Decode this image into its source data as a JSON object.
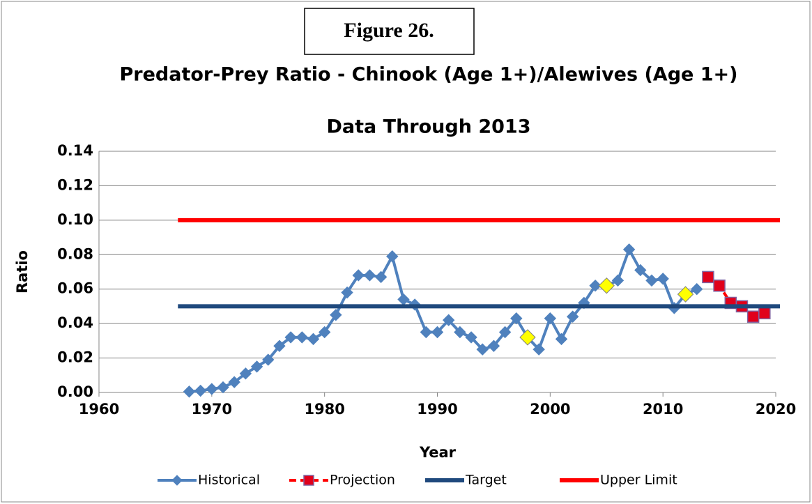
{
  "figure_label": "Figure 26.",
  "chart_data": {
    "type": "line",
    "title": "Predator-Prey Ratio - Chinook (Age 1+)/Alewives (Age 1+)",
    "subtitle": "Data Through 2013",
    "x_label": "Year",
    "y_label": "Ratio",
    "xlim": [
      1960,
      2020
    ],
    "xticks": [
      1960,
      1970,
      1980,
      1990,
      2000,
      2010,
      2020
    ],
    "ylim": [
      0,
      0.14
    ],
    "yticks": [
      {
        "value": 0,
        "label": "0.00"
      },
      {
        "value": 0.02,
        "label": "0.02"
      },
      {
        "value": 0.04,
        "label": "0.04"
      },
      {
        "value": 0.06,
        "label": "0.06"
      },
      {
        "value": 0.08,
        "label": "0.08"
      },
      {
        "value": 0.1,
        "label": "0.10"
      },
      {
        "value": 0.12,
        "label": "0.12"
      },
      {
        "value": 0.14,
        "label": "0.14"
      }
    ],
    "grid": true,
    "legend": "bottom",
    "highlight_x": [
      1998,
      2005,
      2012
    ],
    "highlight_color": "#ffff00",
    "series": [
      {
        "name": "Historical",
        "color": "#4f81bd",
        "marker": "diamond",
        "dash": false,
        "x": [
          1968,
          1969,
          1970,
          1971,
          1972,
          1973,
          1974,
          1975,
          1976,
          1977,
          1978,
          1979,
          1980,
          1981,
          1982,
          1983,
          1984,
          1985,
          1986,
          1987,
          1988,
          1989,
          1990,
          1991,
          1992,
          1993,
          1994,
          1995,
          1996,
          1997,
          1998,
          1999,
          2000,
          2001,
          2002,
          2003,
          2004,
          2005,
          2006,
          2007,
          2008,
          2009,
          2010,
          2011,
          2012,
          2013
        ],
        "values": [
          0.0005,
          0.001,
          0.002,
          0.003,
          0.006,
          0.011,
          0.015,
          0.019,
          0.027,
          0.032,
          0.032,
          0.031,
          0.035,
          0.045,
          0.058,
          0.068,
          0.068,
          0.067,
          0.079,
          0.054,
          0.051,
          0.035,
          0.035,
          0.042,
          0.035,
          0.032,
          0.025,
          0.027,
          0.035,
          0.043,
          0.032,
          0.025,
          0.043,
          0.031,
          0.044,
          0.052,
          0.062,
          0.062,
          0.065,
          0.083,
          0.071,
          0.065,
          0.066,
          0.049,
          0.057,
          0.06
        ]
      },
      {
        "name": "Projection",
        "color": "#ff0000",
        "marker": "square",
        "marker_color": "#e0001b",
        "marker_edge": "#8064a2",
        "dash": true,
        "x": [
          2014,
          2015,
          2016,
          2017,
          2018,
          2019
        ],
        "values": [
          0.067,
          0.062,
          0.052,
          0.05,
          0.044,
          0.046
        ]
      },
      {
        "name": "Target",
        "color": "#1f497d",
        "marker": "none",
        "dash": false,
        "x": [
          1967,
          2020
        ],
        "values": [
          0.05,
          0.05
        ]
      },
      {
        "name": "Upper Limit",
        "color": "#ff0000",
        "marker": "none",
        "dash": false,
        "x": [
          1967,
          2020
        ],
        "values": [
          0.1,
          0.1
        ]
      }
    ]
  }
}
